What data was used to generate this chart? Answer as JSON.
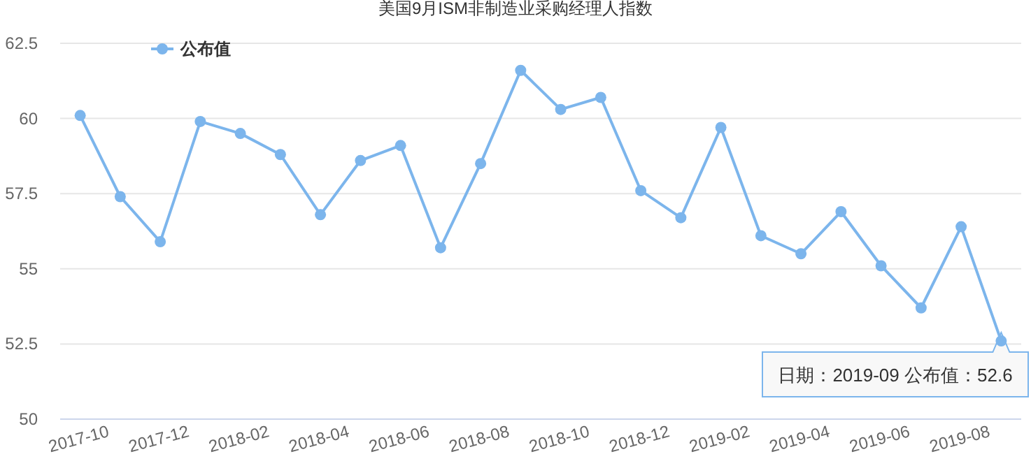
{
  "chart_data": {
    "type": "line",
    "title": "美国9月ISM非制造业采购经理人指数",
    "categories": [
      "2017-10",
      null,
      "2017-12",
      null,
      "2018-02",
      null,
      "2018-04",
      null,
      "2018-06",
      null,
      "2018-08",
      null,
      "2018-10",
      null,
      "2018-12",
      null,
      "2019-02",
      null,
      "2019-04",
      null,
      "2019-06",
      null,
      "2019-08",
      null
    ],
    "series": [
      {
        "name": "公布值",
        "color": "#7cb5ec",
        "values": [
          60.1,
          57.4,
          55.9,
          59.9,
          59.5,
          58.8,
          56.8,
          58.6,
          59.1,
          55.7,
          58.5,
          61.6,
          60.3,
          60.7,
          57.6,
          56.7,
          59.7,
          56.1,
          55.5,
          56.9,
          55.1,
          53.7,
          56.4,
          52.6
        ]
      }
    ],
    "ylim": [
      50,
      62.5
    ],
    "yticks": [
      50,
      52.5,
      55,
      57.5,
      60,
      62.5
    ],
    "grid": "y",
    "legend": "top left",
    "marker": "circle",
    "annotations": [
      "日期：2019-09 公布值：52.6"
    ]
  }
}
